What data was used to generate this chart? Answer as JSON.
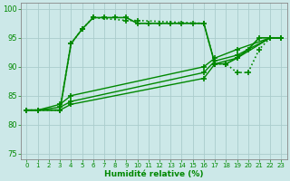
{
  "title": "",
  "xlabel": "Humidité relative (%)",
  "ylabel": "",
  "xlim": [
    -0.5,
    23.5
  ],
  "ylim": [
    74,
    101
  ],
  "yticks": [
    75,
    80,
    85,
    90,
    95,
    100
  ],
  "xticks": [
    0,
    1,
    2,
    3,
    4,
    5,
    6,
    7,
    8,
    9,
    10,
    11,
    12,
    13,
    14,
    15,
    16,
    17,
    18,
    19,
    20,
    21,
    22,
    23
  ],
  "background_color": "#cce8e8",
  "grid_color": "#aacccc",
  "line_color": "#008800",
  "lines": [
    {
      "x": [
        0,
        1,
        3,
        4,
        5,
        6,
        7,
        8,
        9,
        10,
        11,
        12,
        13,
        14,
        15,
        16,
        17,
        18,
        19,
        20,
        21,
        22,
        23
      ],
      "y": [
        82.5,
        82.5,
        82.5,
        94,
        96.5,
        98.5,
        98.5,
        98.5,
        98.5,
        97.5,
        97.5,
        97.5,
        97.5,
        97.5,
        97.5,
        97.5,
        90.5,
        90.5,
        91.5,
        93,
        95,
        95,
        95
      ],
      "marker": "+",
      "markersize": 4,
      "linestyle": "-",
      "linewidth": 1.2
    },
    {
      "x": [
        0,
        1,
        3,
        4,
        5,
        6,
        9,
        10,
        16,
        17,
        18,
        19,
        20,
        21,
        22,
        23
      ],
      "y": [
        82.5,
        82.5,
        82.5,
        94,
        96.5,
        98.5,
        98,
        98,
        97.5,
        90.5,
        90.5,
        89,
        89,
        93,
        95,
        95
      ],
      "marker": "+",
      "markersize": 4,
      "linestyle": ":",
      "linewidth": 1.2
    },
    {
      "x": [
        0,
        1,
        3,
        4,
        16,
        17,
        19,
        22,
        23
      ],
      "y": [
        82.5,
        82.5,
        82.5,
        83.5,
        88,
        90.5,
        91.5,
        95,
        95
      ],
      "marker": "+",
      "markersize": 4,
      "linestyle": "-",
      "linewidth": 1.0
    },
    {
      "x": [
        0,
        1,
        3,
        4,
        16,
        17,
        19,
        22,
        23
      ],
      "y": [
        82.5,
        82.5,
        83,
        84,
        89,
        91,
        92,
        95,
        95
      ],
      "marker": "+",
      "markersize": 4,
      "linestyle": "-",
      "linewidth": 1.0
    },
    {
      "x": [
        0,
        1,
        3,
        4,
        16,
        17,
        19,
        22,
        23
      ],
      "y": [
        82.5,
        82.5,
        83.5,
        85,
        90,
        91.5,
        93,
        95,
        95
      ],
      "marker": "+",
      "markersize": 4,
      "linestyle": "-",
      "linewidth": 1.0
    }
  ]
}
